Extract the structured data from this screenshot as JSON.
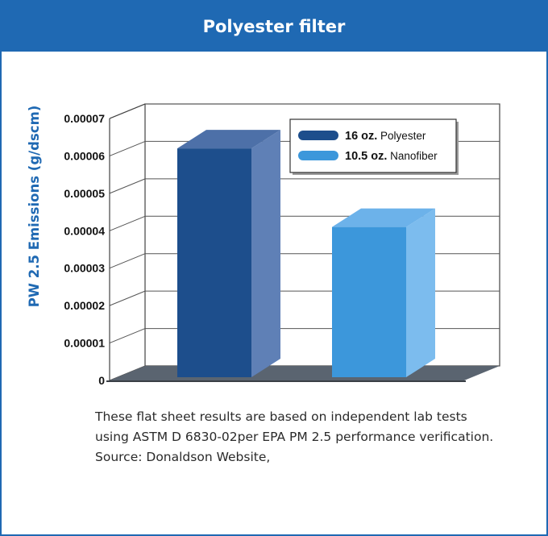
{
  "header": {
    "title": "Polyester filter"
  },
  "chart_data": {
    "type": "bar",
    "ylabel": "PW 2.5 Emissions (g/dscm)",
    "ylim": [
      0,
      7e-05
    ],
    "yticks": [
      "0",
      "0.00001",
      "0.00002",
      "0.00003",
      "0.00004",
      "0.00005",
      "0.00006",
      "0.00007"
    ],
    "grid": true,
    "legend_position": "top-right",
    "series": [
      {
        "name": "16 oz. Polyester",
        "legend_bold": "16 oz.",
        "legend_rest": " Polyester",
        "value": 6.2e-05,
        "color": "#1d4e8c",
        "side_color": "#5f80b6",
        "top_color": "#4d70a8"
      },
      {
        "name": "10.5 oz. Nanofiber",
        "legend_bold": "10.5 oz.",
        "legend_rest": " Nanofiber",
        "value": 4.1e-05,
        "color": "#3c97db",
        "side_color": "#7cbcee",
        "top_color": "#6cb2ea"
      }
    ]
  },
  "caption": {
    "line1": "These flat sheet results are based on independent lab tests",
    "line2": "using ASTM D 6830-02per EPA PM 2.5 performance verification.",
    "line3": "Source: Donaldson Website,"
  }
}
